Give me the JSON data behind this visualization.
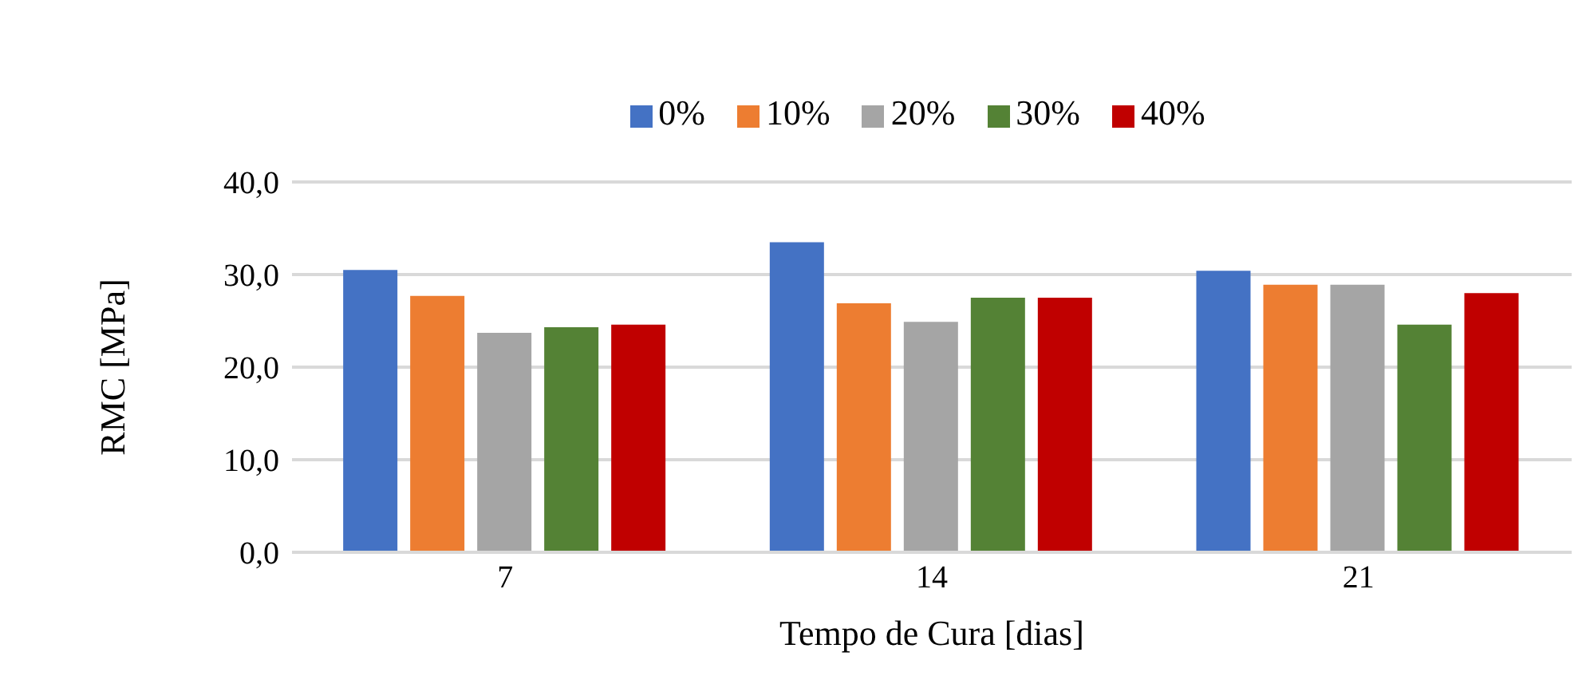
{
  "chart_data": {
    "type": "bar",
    "xlabel": "Tempo de Cura [dias]",
    "ylabel": "RMC [MPa]",
    "categories": [
      "7",
      "14",
      "21"
    ],
    "series": [
      {
        "name": "0%",
        "color": "#4472c4",
        "values": [
          30.5,
          33.5,
          30.4
        ]
      },
      {
        "name": "10%",
        "color": "#ed7d31",
        "values": [
          27.7,
          26.9,
          28.9
        ]
      },
      {
        "name": "20%",
        "color": "#a5a5a5",
        "values": [
          23.7,
          24.9,
          28.9
        ]
      },
      {
        "name": "30%",
        "color": "#548235",
        "values": [
          24.3,
          27.5,
          24.6
        ]
      },
      {
        "name": "40%",
        "color": "#c00000",
        "values": [
          24.6,
          27.5,
          28.0
        ]
      }
    ],
    "ylim": [
      0,
      40
    ],
    "yticks": [
      {
        "value": 0,
        "label": "0,0"
      },
      {
        "value": 10,
        "label": "10,0"
      },
      {
        "value": 20,
        "label": "20,0"
      },
      {
        "value": 30,
        "label": "30,0"
      },
      {
        "value": 40,
        "label": "40,0"
      }
    ],
    "grid": "y",
    "legend": "top"
  }
}
